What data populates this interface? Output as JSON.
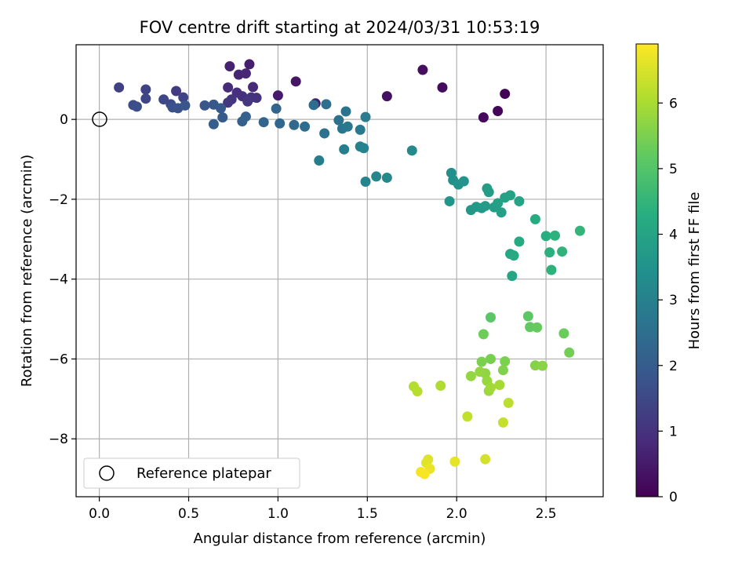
{
  "chart_data": {
    "type": "scatter",
    "title": "FOV centre drift starting at 2024/03/31 10:53:19",
    "xlabel": "Angular distance from reference (arcmin)",
    "ylabel": "Rotation from reference (arcmin)",
    "xlim": [
      -0.13,
      2.82
    ],
    "ylim": [
      -9.45,
      1.87
    ],
    "x_ticks": [
      0.0,
      0.5,
      1.0,
      1.5,
      2.0,
      2.5
    ],
    "x_tick_labels": [
      "0.0",
      "0.5",
      "1.0",
      "1.5",
      "2.0",
      "2.5"
    ],
    "y_ticks": [
      -8,
      -6,
      -4,
      -2,
      0
    ],
    "y_tick_labels": [
      "−8",
      "−6",
      "−4",
      "−2",
      "0"
    ],
    "grid": true,
    "colormap": "viridis",
    "colorbar": {
      "label": "Hours from first FF file",
      "range": [
        0,
        6.9
      ],
      "ticks": [
        0,
        1,
        2,
        3,
        4,
        5,
        6
      ],
      "tick_labels": [
        "0",
        "1",
        "2",
        "3",
        "4",
        "5",
        "6"
      ]
    },
    "legend": {
      "position": "lower-left",
      "entries": [
        "Reference platepar"
      ]
    },
    "reference_point": {
      "x": 0.0,
      "y": 0.0,
      "style": "open black circle"
    },
    "points": [
      {
        "x": 2.27,
        "y": 0.64,
        "c": 0.05
      },
      {
        "x": 2.23,
        "y": 0.21,
        "c": 0.1
      },
      {
        "x": 2.15,
        "y": 0.05,
        "c": 0.15
      },
      {
        "x": 1.92,
        "y": 0.8,
        "c": 0.2
      },
      {
        "x": 1.81,
        "y": 1.24,
        "c": 0.25
      },
      {
        "x": 1.61,
        "y": 0.58,
        "c": 0.3
      },
      {
        "x": 1.1,
        "y": 0.95,
        "c": 0.4
      },
      {
        "x": 1.0,
        "y": 0.6,
        "c": 0.5
      },
      {
        "x": 1.21,
        "y": 0.4,
        "c": 0.55
      },
      {
        "x": 0.84,
        "y": 1.38,
        "c": 0.6
      },
      {
        "x": 0.73,
        "y": 1.33,
        "c": 0.65
      },
      {
        "x": 0.78,
        "y": 1.12,
        "c": 0.7
      },
      {
        "x": 0.82,
        "y": 1.15,
        "c": 0.75
      },
      {
        "x": 0.86,
        "y": 0.81,
        "c": 0.8
      },
      {
        "x": 0.72,
        "y": 0.8,
        "c": 0.85
      },
      {
        "x": 0.77,
        "y": 0.67,
        "c": 0.9
      },
      {
        "x": 0.8,
        "y": 0.58,
        "c": 0.95
      },
      {
        "x": 0.85,
        "y": 0.55,
        "c": 1.0
      },
      {
        "x": 0.88,
        "y": 0.54,
        "c": 1.0
      },
      {
        "x": 0.74,
        "y": 0.5,
        "c": 1.05
      },
      {
        "x": 0.83,
        "y": 0.45,
        "c": 1.1
      },
      {
        "x": 0.72,
        "y": 0.42,
        "c": 1.1
      },
      {
        "x": 0.43,
        "y": 0.71,
        "c": 1.2
      },
      {
        "x": 0.11,
        "y": 0.8,
        "c": 1.3
      },
      {
        "x": 0.26,
        "y": 0.75,
        "c": 1.35
      },
      {
        "x": 0.47,
        "y": 0.55,
        "c": 1.4
      },
      {
        "x": 0.26,
        "y": 0.52,
        "c": 1.45
      },
      {
        "x": 0.36,
        "y": 0.5,
        "c": 1.5
      },
      {
        "x": 0.4,
        "y": 0.38,
        "c": 1.55
      },
      {
        "x": 0.19,
        "y": 0.36,
        "c": 1.6
      },
      {
        "x": 0.21,
        "y": 0.32,
        "c": 1.65
      },
      {
        "x": 0.41,
        "y": 0.3,
        "c": 1.7
      },
      {
        "x": 0.44,
        "y": 0.28,
        "c": 1.75
      },
      {
        "x": 0.48,
        "y": 0.35,
        "c": 1.8
      },
      {
        "x": 0.59,
        "y": 0.35,
        "c": 1.85
      },
      {
        "x": 0.64,
        "y": 0.37,
        "c": 1.9
      },
      {
        "x": 0.68,
        "y": 0.28,
        "c": 1.95
      },
      {
        "x": 0.69,
        "y": 0.05,
        "c": 2.0
      },
      {
        "x": 0.64,
        "y": -0.12,
        "c": 2.05
      },
      {
        "x": 0.8,
        "y": -0.05,
        "c": 2.1
      },
      {
        "x": 0.82,
        "y": 0.07,
        "c": 2.15
      },
      {
        "x": 0.92,
        "y": -0.07,
        "c": 2.2
      },
      {
        "x": 0.99,
        "y": 0.27,
        "c": 2.25
      },
      {
        "x": 1.01,
        "y": -0.1,
        "c": 2.3
      },
      {
        "x": 1.09,
        "y": -0.14,
        "c": 2.35
      },
      {
        "x": 1.15,
        "y": -0.18,
        "c": 2.4
      },
      {
        "x": 1.2,
        "y": 0.36,
        "c": 2.45
      },
      {
        "x": 1.27,
        "y": 0.38,
        "c": 2.5
      },
      {
        "x": 1.26,
        "y": -0.35,
        "c": 2.55
      },
      {
        "x": 1.34,
        "y": -0.02,
        "c": 2.6
      },
      {
        "x": 1.38,
        "y": 0.2,
        "c": 2.65
      },
      {
        "x": 1.36,
        "y": -0.23,
        "c": 2.7
      },
      {
        "x": 1.39,
        "y": -0.18,
        "c": 2.75
      },
      {
        "x": 1.46,
        "y": -0.26,
        "c": 2.8
      },
      {
        "x": 1.49,
        "y": 0.06,
        "c": 2.85
      },
      {
        "x": 1.23,
        "y": -1.03,
        "c": 2.9
      },
      {
        "x": 1.37,
        "y": -0.75,
        "c": 2.95
      },
      {
        "x": 1.46,
        "y": -0.68,
        "c": 3.0
      },
      {
        "x": 1.48,
        "y": -0.72,
        "c": 3.05
      },
      {
        "x": 1.49,
        "y": -1.56,
        "c": 3.1
      },
      {
        "x": 1.55,
        "y": -1.43,
        "c": 3.15
      },
      {
        "x": 1.61,
        "y": -1.46,
        "c": 3.2
      },
      {
        "x": 1.75,
        "y": -0.78,
        "c": 3.25
      },
      {
        "x": 1.97,
        "y": -1.34,
        "c": 3.4
      },
      {
        "x": 1.98,
        "y": -1.52,
        "c": 3.45
      },
      {
        "x": 2.01,
        "y": -1.63,
        "c": 3.5
      },
      {
        "x": 2.04,
        "y": -1.55,
        "c": 3.55
      },
      {
        "x": 1.96,
        "y": -2.05,
        "c": 3.6
      },
      {
        "x": 2.08,
        "y": -2.27,
        "c": 3.65
      },
      {
        "x": 2.11,
        "y": -2.19,
        "c": 3.7
      },
      {
        "x": 2.14,
        "y": -2.22,
        "c": 3.7
      },
      {
        "x": 2.16,
        "y": -2.17,
        "c": 3.75
      },
      {
        "x": 2.17,
        "y": -1.73,
        "c": 3.8
      },
      {
        "x": 2.18,
        "y": -1.82,
        "c": 3.8
      },
      {
        "x": 2.21,
        "y": -2.2,
        "c": 3.85
      },
      {
        "x": 2.23,
        "y": -2.1,
        "c": 3.9
      },
      {
        "x": 2.25,
        "y": -2.33,
        "c": 3.9
      },
      {
        "x": 2.27,
        "y": -1.96,
        "c": 3.95
      },
      {
        "x": 2.3,
        "y": -1.9,
        "c": 3.95
      },
      {
        "x": 2.35,
        "y": -2.05,
        "c": 4.0
      },
      {
        "x": 2.31,
        "y": -3.92,
        "c": 4.05
      },
      {
        "x": 2.3,
        "y": -3.37,
        "c": 4.1
      },
      {
        "x": 2.32,
        "y": -3.41,
        "c": 4.15
      },
      {
        "x": 2.35,
        "y": -3.06,
        "c": 4.2
      },
      {
        "x": 2.44,
        "y": -2.5,
        "c": 4.25
      },
      {
        "x": 2.5,
        "y": -2.92,
        "c": 4.3
      },
      {
        "x": 2.52,
        "y": -3.33,
        "c": 4.35
      },
      {
        "x": 2.53,
        "y": -3.77,
        "c": 4.4
      },
      {
        "x": 2.55,
        "y": -2.91,
        "c": 4.4
      },
      {
        "x": 2.59,
        "y": -3.31,
        "c": 4.45
      },
      {
        "x": 2.69,
        "y": -2.79,
        "c": 4.5
      },
      {
        "x": 2.19,
        "y": -4.96,
        "c": 5.1
      },
      {
        "x": 2.4,
        "y": -4.93,
        "c": 5.15
      },
      {
        "x": 2.41,
        "y": -5.2,
        "c": 5.2
      },
      {
        "x": 2.45,
        "y": -5.21,
        "c": 5.25
      },
      {
        "x": 2.6,
        "y": -5.36,
        "c": 5.3
      },
      {
        "x": 2.15,
        "y": -5.38,
        "c": 5.35
      },
      {
        "x": 2.63,
        "y": -5.84,
        "c": 5.4
      },
      {
        "x": 2.19,
        "y": -6.0,
        "c": 5.45
      },
      {
        "x": 2.14,
        "y": -6.07,
        "c": 5.5
      },
      {
        "x": 2.27,
        "y": -6.06,
        "c": 5.5
      },
      {
        "x": 2.26,
        "y": -6.28,
        "c": 5.55
      },
      {
        "x": 2.44,
        "y": -6.16,
        "c": 5.6
      },
      {
        "x": 2.48,
        "y": -6.17,
        "c": 5.65
      },
      {
        "x": 2.16,
        "y": -6.36,
        "c": 5.7
      },
      {
        "x": 2.08,
        "y": -6.43,
        "c": 5.75
      },
      {
        "x": 2.13,
        "y": -6.32,
        "c": 5.75
      },
      {
        "x": 2.17,
        "y": -6.55,
        "c": 5.8
      },
      {
        "x": 2.18,
        "y": -6.8,
        "c": 5.85
      },
      {
        "x": 2.19,
        "y": -6.72,
        "c": 5.9
      },
      {
        "x": 2.24,
        "y": -6.65,
        "c": 5.95
      },
      {
        "x": 1.91,
        "y": -6.67,
        "c": 6.05
      },
      {
        "x": 1.76,
        "y": -6.69,
        "c": 6.1
      },
      {
        "x": 1.78,
        "y": -6.81,
        "c": 6.15
      },
      {
        "x": 2.29,
        "y": -7.1,
        "c": 6.2
      },
      {
        "x": 2.06,
        "y": -7.44,
        "c": 6.25
      },
      {
        "x": 2.26,
        "y": -7.59,
        "c": 6.3
      },
      {
        "x": 2.16,
        "y": -8.51,
        "c": 6.45
      },
      {
        "x": 1.84,
        "y": -8.52,
        "c": 6.55
      },
      {
        "x": 1.83,
        "y": -8.6,
        "c": 6.6
      },
      {
        "x": 1.99,
        "y": -8.57,
        "c": 6.65
      },
      {
        "x": 1.85,
        "y": -8.75,
        "c": 6.7
      },
      {
        "x": 1.8,
        "y": -8.83,
        "c": 6.8
      },
      {
        "x": 1.82,
        "y": -8.88,
        "c": 6.85
      }
    ]
  }
}
